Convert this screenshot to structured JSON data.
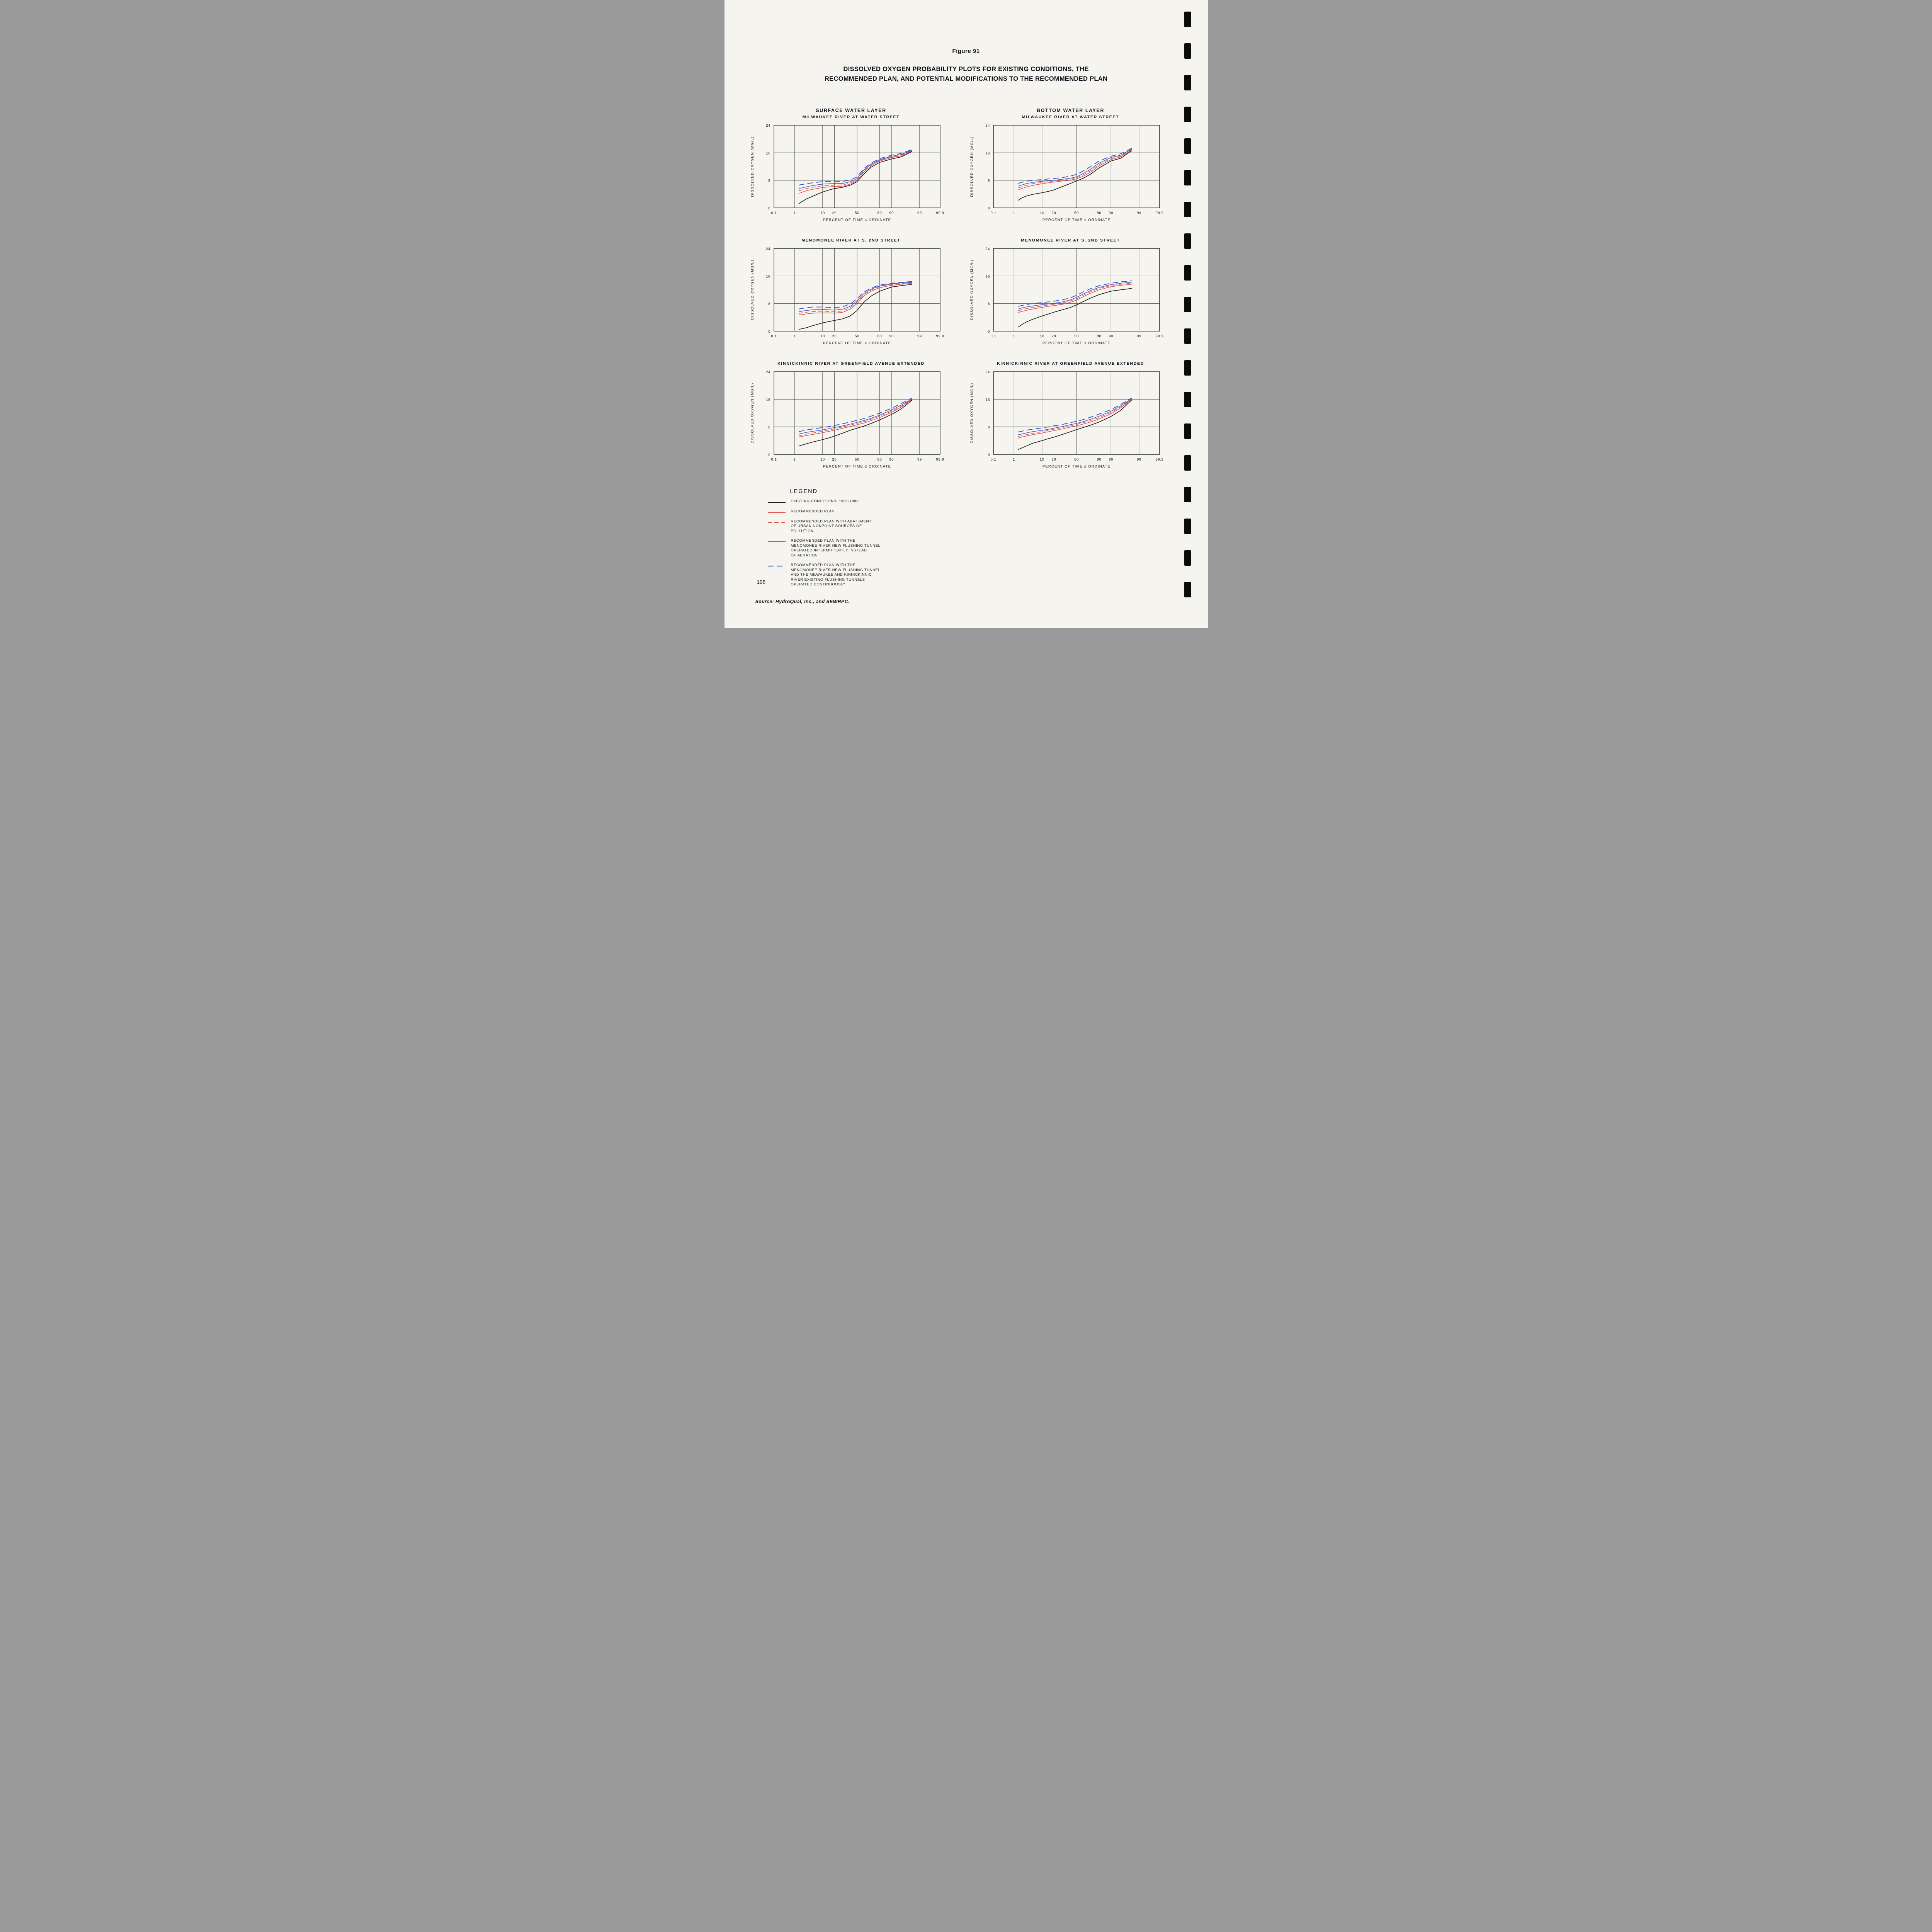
{
  "page": {
    "figure_label": "Figure 91",
    "title_line1": "DISSOLVED OXYGEN PROBABILITY PLOTS FOR EXISTING CONDITIONS, THE",
    "title_line2": "RECOMMENDED PLAN, AND POTENTIAL MODIFICATIONS TO THE RECOMMENDED PLAN",
    "column_headers": [
      "SURFACE WATER LAYER",
      "BOTTOM WATER LAYER"
    ],
    "source": "Source: HydroQual, Inc., and SEWRPC.",
    "page_number": "198"
  },
  "axes": {
    "ylabel": "DISSOLVED OXYGEN (MG/L)",
    "xlabel": "PERCENT OF TIME ≤ ORDINATE",
    "ylim": [
      0,
      24
    ],
    "yticks": [
      0,
      8,
      16,
      24
    ],
    "ytick_labels": [
      "0",
      "8",
      "16",
      "24"
    ],
    "xticks": [
      0.1,
      1,
      10,
      20,
      50,
      80,
      90,
      99,
      99.9
    ],
    "xtick_labels": [
      "0.1",
      "1",
      "10",
      "20",
      "50",
      "80",
      "90",
      "99",
      "99.9"
    ],
    "x_scale": "normal-probability",
    "grid": true
  },
  "series_styles": {
    "existing": {
      "color": "#1d1d1d",
      "width": 1.7,
      "dash": null
    },
    "plan": {
      "color": "#e0453c",
      "width": 1.4,
      "dash": null
    },
    "plan_abatement": {
      "color": "#e0453c",
      "width": 1.4,
      "dash": "11,6"
    },
    "plan_tunnel_intermittent": {
      "color": "#3a55c8",
      "width": 1.4,
      "dash": null
    },
    "plan_tunnel_continuous": {
      "color": "#3a55c8",
      "width": 1.9,
      "dash": "15,8"
    }
  },
  "legend": {
    "title": "LEGEND",
    "items": [
      {
        "id": "existing",
        "label": "EXISTING CONDITIONS: 1981-1983"
      },
      {
        "id": "plan",
        "label": "RECOMMENDED PLAN"
      },
      {
        "id": "plan_abatement",
        "label": "RECOMMENDED PLAN WITH ABATEMENT\nOF URBAN NONPOINT SOURCES OF\nPOLLUTION"
      },
      {
        "id": "plan_tunnel_intermittent",
        "label": "RECOMMENDED PLAN WITH THE\nMENOMONEE RIVER NEW FLUSHING TUNNEL\nOPERATED INTERMITTENTLY INSTEAD\nOF AERATION"
      },
      {
        "id": "plan_tunnel_continuous",
        "label": "RECOMMENDED PLAN WITH THE\nMENOMONEE RIVER NEW FLUSHING TUNNEL\nAND THE MILWAUKEE AND KINNICKINNIC\nRIVER EXISTING FLUSHING TUNNELS\nOPERATED CONTINUOUSLY"
      }
    ]
  },
  "chart_data": [
    {
      "type": "line",
      "title": "MILWAUKEE RIVER AT WATER STREET",
      "layer": "SURFACE WATER LAYER",
      "xlabel": "PERCENT OF TIME ≤ ORDINATE",
      "ylabel": "DISSOLVED OXYGEN (MG/L)",
      "ylim": [
        0,
        24
      ],
      "x": [
        1.5,
        2,
        3,
        5,
        10,
        15,
        20,
        30,
        40,
        50,
        60,
        70,
        80,
        90,
        95,
        98
      ],
      "series": [
        {
          "id": "existing",
          "values": [
            1.2,
            1.8,
            2.6,
            3.4,
            4.6,
            5.2,
            5.6,
            6.0,
            6.6,
            7.6,
            9.8,
            11.8,
            13.2,
            14.2,
            14.8,
            16.4
          ]
        },
        {
          "id": "plan",
          "values": [
            4.2,
            4.5,
            5.0,
            5.4,
            5.9,
            6.1,
            6.2,
            6.3,
            6.9,
            7.9,
            10.4,
            12.2,
            13.6,
            14.6,
            15.1,
            16.6
          ]
        },
        {
          "id": "plan_abatement",
          "values": [
            5.0,
            5.2,
            5.6,
            6.0,
            6.4,
            6.5,
            6.6,
            6.7,
            7.2,
            8.2,
            10.7,
            12.5,
            13.8,
            14.8,
            15.3,
            16.7
          ]
        },
        {
          "id": "plan_tunnel_intermittent",
          "values": [
            5.6,
            5.8,
            6.1,
            6.5,
            6.9,
            7.0,
            7.1,
            7.1,
            7.6,
            8.5,
            11.0,
            12.7,
            14.0,
            15.0,
            15.5,
            16.8
          ]
        },
        {
          "id": "plan_tunnel_continuous",
          "values": [
            6.6,
            6.8,
            7.0,
            7.3,
            7.6,
            7.7,
            7.7,
            7.7,
            8.1,
            9.0,
            11.4,
            13.0,
            14.3,
            15.3,
            15.8,
            17.0
          ]
        }
      ]
    },
    {
      "type": "line",
      "title": "MILWAUKEE RIVER AT WATER STREET",
      "layer": "BOTTOM WATER LAYER",
      "xlabel": "PERCENT OF TIME ≤ ORDINATE",
      "ylabel": "DISSOLVED OXYGEN (MG/L)",
      "ylim": [
        0,
        24
      ],
      "x": [
        1.5,
        2,
        3,
        5,
        10,
        15,
        20,
        30,
        40,
        50,
        60,
        70,
        80,
        90,
        95,
        98
      ],
      "series": [
        {
          "id": "existing",
          "values": [
            2.2,
            2.8,
            3.4,
            3.9,
            4.4,
            4.8,
            5.2,
            6.2,
            7.0,
            7.8,
            8.6,
            9.8,
            11.6,
            13.6,
            14.4,
            16.6
          ]
        },
        {
          "id": "plan",
          "values": [
            5.2,
            5.6,
            6.0,
            6.5,
            7.0,
            7.3,
            7.5,
            7.8,
            8.0,
            8.4,
            9.2,
            10.4,
            12.2,
            14.0,
            14.8,
            16.8
          ]
        },
        {
          "id": "plan_abatement",
          "values": [
            5.8,
            6.1,
            6.5,
            7.0,
            7.4,
            7.6,
            7.8,
            8.0,
            8.3,
            8.7,
            9.6,
            10.8,
            12.6,
            14.3,
            15.0,
            17.0
          ]
        },
        {
          "id": "plan_tunnel_intermittent",
          "values": [
            6.3,
            6.6,
            7.0,
            7.4,
            7.7,
            7.9,
            8.0,
            8.3,
            8.6,
            9.0,
            10.0,
            11.2,
            13.0,
            14.6,
            15.3,
            17.1
          ]
        },
        {
          "id": "plan_tunnel_continuous",
          "values": [
            7.1,
            7.4,
            7.7,
            8.0,
            8.2,
            8.4,
            8.5,
            8.8,
            9.2,
            9.7,
            10.7,
            12.0,
            13.6,
            15.0,
            15.7,
            17.3
          ]
        }
      ]
    },
    {
      "type": "line",
      "title": "MENOMONEE RIVER AT S. 2ND STREET",
      "layer": "SURFACE WATER LAYER",
      "xlabel": "PERCENT OF TIME ≤ ORDINATE",
      "ylabel": "DISSOLVED OXYGEN (MG/L)",
      "ylim": [
        0,
        24
      ],
      "x": [
        1.5,
        2,
        3,
        5,
        10,
        15,
        20,
        30,
        40,
        50,
        60,
        70,
        80,
        90,
        95,
        98
      ],
      "series": [
        {
          "id": "existing",
          "values": [
            0.5,
            0.7,
            1.0,
            1.6,
            2.4,
            2.8,
            3.1,
            3.6,
            4.4,
            6.0,
            8.4,
            10.2,
            11.6,
            12.8,
            13.2,
            13.6
          ]
        },
        {
          "id": "plan",
          "values": [
            4.6,
            4.8,
            5.0,
            5.2,
            5.3,
            5.3,
            5.2,
            5.5,
            6.4,
            8.0,
            10.2,
            11.6,
            12.6,
            13.3,
            13.6,
            13.9
          ]
        },
        {
          "id": "plan_abatement",
          "values": [
            5.1,
            5.3,
            5.5,
            5.7,
            5.8,
            5.7,
            5.6,
            5.9,
            6.8,
            8.4,
            10.6,
            11.9,
            12.9,
            13.5,
            13.8,
            14.1
          ]
        },
        {
          "id": "plan_tunnel_intermittent",
          "values": [
            5.6,
            5.8,
            6.0,
            6.2,
            6.3,
            6.2,
            6.1,
            6.4,
            7.2,
            8.8,
            10.9,
            12.2,
            13.1,
            13.7,
            14.0,
            14.2
          ]
        },
        {
          "id": "plan_tunnel_continuous",
          "values": [
            6.4,
            6.6,
            6.8,
            7.0,
            7.0,
            6.9,
            6.8,
            7.1,
            7.9,
            9.4,
            11.3,
            12.5,
            13.4,
            13.9,
            14.2,
            14.4
          ]
        }
      ]
    },
    {
      "type": "line",
      "title": "MENOMONEE RIVER AT S. 2ND STREET",
      "layer": "BOTTOM WATER LAYER",
      "xlabel": "PERCENT OF TIME ≤ ORDINATE",
      "ylabel": "DISSOLVED OXYGEN (MG/L)",
      "ylim": [
        0,
        24
      ],
      "x": [
        1.5,
        2,
        3,
        5,
        10,
        15,
        20,
        30,
        40,
        50,
        60,
        70,
        80,
        90,
        95,
        98
      ],
      "series": [
        {
          "id": "existing",
          "values": [
            1.2,
            1.8,
            2.6,
            3.4,
            4.4,
            5.0,
            5.5,
            6.2,
            6.8,
            7.6,
            8.6,
            9.6,
            10.6,
            11.6,
            12.0,
            12.4
          ]
        },
        {
          "id": "plan",
          "values": [
            5.4,
            5.7,
            6.0,
            6.4,
            6.9,
            7.2,
            7.4,
            7.8,
            8.3,
            9.0,
            10.0,
            11.0,
            12.0,
            12.9,
            13.3,
            13.6
          ]
        },
        {
          "id": "plan_abatement",
          "values": [
            5.9,
            6.2,
            6.5,
            6.9,
            7.3,
            7.6,
            7.8,
            8.2,
            8.7,
            9.4,
            10.4,
            11.4,
            12.4,
            13.2,
            13.6,
            13.9
          ]
        },
        {
          "id": "plan_tunnel_intermittent",
          "values": [
            6.4,
            6.7,
            7.0,
            7.3,
            7.7,
            7.9,
            8.1,
            8.5,
            9.0,
            9.8,
            10.8,
            11.8,
            12.7,
            13.5,
            13.9,
            14.2
          ]
        },
        {
          "id": "plan_tunnel_continuous",
          "values": [
            7.2,
            7.4,
            7.7,
            8.0,
            8.3,
            8.5,
            8.7,
            9.1,
            9.6,
            10.4,
            11.4,
            12.3,
            13.2,
            13.9,
            14.3,
            14.6
          ]
        }
      ]
    },
    {
      "type": "line",
      "title": "KINNICKINNIC RIVER AT GREENFIELD AVENUE EXTENDED",
      "layer": "SURFACE WATER LAYER",
      "xlabel": "PERCENT OF TIME ≤ ORDINATE",
      "ylabel": "DISSOLVED OXYGEN (MG/L)",
      "ylim": [
        0,
        24
      ],
      "x": [
        1.5,
        2,
        3,
        5,
        10,
        15,
        20,
        30,
        40,
        50,
        60,
        70,
        80,
        90,
        95,
        98
      ],
      "series": [
        {
          "id": "existing",
          "values": [
            2.4,
            2.7,
            3.1,
            3.6,
            4.3,
            4.8,
            5.3,
            6.2,
            7.0,
            7.6,
            8.2,
            9.0,
            10.0,
            11.6,
            13.2,
            15.8
          ]
        },
        {
          "id": "plan",
          "values": [
            5.0,
            5.2,
            5.5,
            5.8,
            6.3,
            6.7,
            7.0,
            7.6,
            8.1,
            8.6,
            9.1,
            9.8,
            10.7,
            12.2,
            13.7,
            16.0
          ]
        },
        {
          "id": "plan_abatement",
          "values": [
            5.4,
            5.6,
            5.9,
            6.2,
            6.7,
            7.1,
            7.4,
            8.0,
            8.5,
            9.0,
            9.5,
            10.2,
            11.1,
            12.5,
            14.0,
            16.1
          ]
        },
        {
          "id": "plan_tunnel_intermittent",
          "values": [
            5.9,
            6.1,
            6.4,
            6.7,
            7.1,
            7.5,
            7.8,
            8.3,
            8.8,
            9.3,
            9.8,
            10.5,
            11.4,
            12.9,
            14.3,
            16.2
          ]
        },
        {
          "id": "plan_tunnel_continuous",
          "values": [
            6.6,
            6.8,
            7.1,
            7.4,
            7.8,
            8.1,
            8.4,
            8.9,
            9.4,
            9.9,
            10.4,
            11.1,
            12.0,
            13.4,
            14.8,
            16.4
          ]
        }
      ]
    },
    {
      "type": "line",
      "title": "KINNICKINNIC RIVER AT GREENFIELD AVENUE EXTENDED",
      "layer": "BOTTOM WATER LAYER",
      "xlabel": "PERCENT OF TIME ≤ ORDINATE",
      "ylabel": "DISSOLVED OXYGEN (MG/L)",
      "ylim": [
        0,
        24
      ],
      "x": [
        1.5,
        2,
        3,
        5,
        10,
        15,
        20,
        30,
        40,
        50,
        60,
        70,
        80,
        90,
        95,
        98
      ],
      "series": [
        {
          "id": "existing",
          "values": [
            1.4,
            1.8,
            2.4,
            3.2,
            4.0,
            4.6,
            5.0,
            5.8,
            6.5,
            7.2,
            7.8,
            8.5,
            9.4,
            11.0,
            12.8,
            15.8
          ]
        },
        {
          "id": "plan",
          "values": [
            4.7,
            5.0,
            5.3,
            5.7,
            6.2,
            6.6,
            6.9,
            7.4,
            7.9,
            8.3,
            8.8,
            9.4,
            10.3,
            11.8,
            13.5,
            16.0
          ]
        },
        {
          "id": "plan_abatement",
          "values": [
            5.2,
            5.4,
            5.7,
            6.1,
            6.6,
            7.0,
            7.3,
            7.8,
            8.2,
            8.7,
            9.2,
            9.8,
            10.7,
            12.2,
            13.8,
            16.1
          ]
        },
        {
          "id": "plan_tunnel_intermittent",
          "values": [
            5.7,
            5.9,
            6.2,
            6.6,
            7.0,
            7.3,
            7.6,
            8.1,
            8.6,
            9.0,
            9.5,
            10.2,
            11.1,
            12.5,
            14.1,
            16.2
          ]
        },
        {
          "id": "plan_tunnel_continuous",
          "values": [
            6.5,
            6.7,
            7.0,
            7.3,
            7.7,
            8.0,
            8.3,
            8.7,
            9.2,
            9.6,
            10.1,
            10.8,
            11.7,
            13.0,
            14.5,
            16.4
          ]
        }
      ]
    }
  ]
}
